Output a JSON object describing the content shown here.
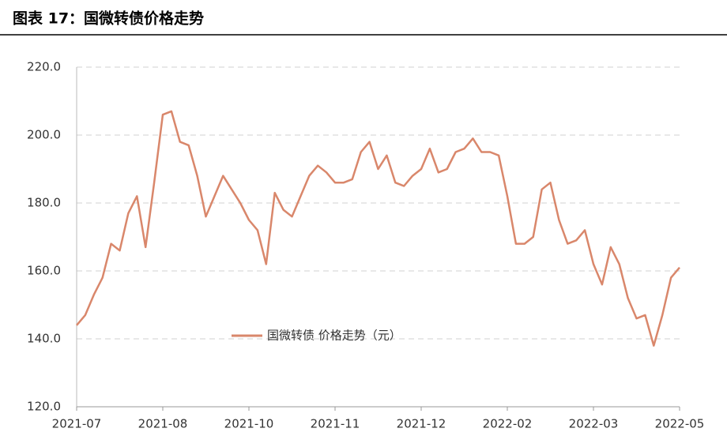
{
  "chart_data": {
    "type": "line",
    "title": "图表 17：国微转债价格走势",
    "categories": [
      "2021-07",
      null,
      null,
      null,
      null,
      null,
      null,
      null,
      null,
      null,
      "2021-08",
      null,
      null,
      null,
      null,
      null,
      null,
      null,
      null,
      null,
      "2021-10",
      null,
      null,
      null,
      null,
      null,
      null,
      null,
      null,
      null,
      "2021-11",
      null,
      null,
      null,
      null,
      null,
      null,
      null,
      null,
      null,
      "2021-12",
      null,
      null,
      null,
      null,
      null,
      null,
      null,
      null,
      null,
      "2022-02",
      null,
      null,
      null,
      null,
      null,
      null,
      null,
      null,
      null,
      "2022-03",
      null,
      null,
      null,
      null,
      null,
      null,
      null,
      null,
      null,
      "2022-05"
    ],
    "series": [
      {
        "name": "国微转债 价格走势（元）",
        "color": "#d9876b",
        "values": [
          144,
          147,
          153,
          158,
          168,
          166,
          177,
          182,
          167,
          186,
          206,
          207,
          198,
          197,
          188,
          176,
          182,
          188,
          184,
          180,
          175,
          172,
          162,
          183,
          178,
          176,
          182,
          188,
          191,
          189,
          186,
          186,
          187,
          195,
          198,
          190,
          194,
          186,
          185,
          188,
          190,
          196,
          189,
          190,
          195,
          196,
          199,
          195,
          195,
          194,
          182,
          168,
          168,
          170,
          184,
          186,
          175,
          168,
          169,
          172,
          162,
          156,
          167,
          162,
          152,
          146,
          147,
          138,
          147,
          158,
          161
        ]
      }
    ],
    "ylim": [
      120,
      220
    ],
    "yticks": [
      {
        "value": 120,
        "label": "120.0"
      },
      {
        "value": 140,
        "label": "140.0"
      },
      {
        "value": 160,
        "label": "160.0"
      },
      {
        "value": 180,
        "label": "180.0"
      },
      {
        "value": 200,
        "label": "200.0"
      },
      {
        "value": 220,
        "label": "220.0"
      }
    ],
    "grid": true
  }
}
